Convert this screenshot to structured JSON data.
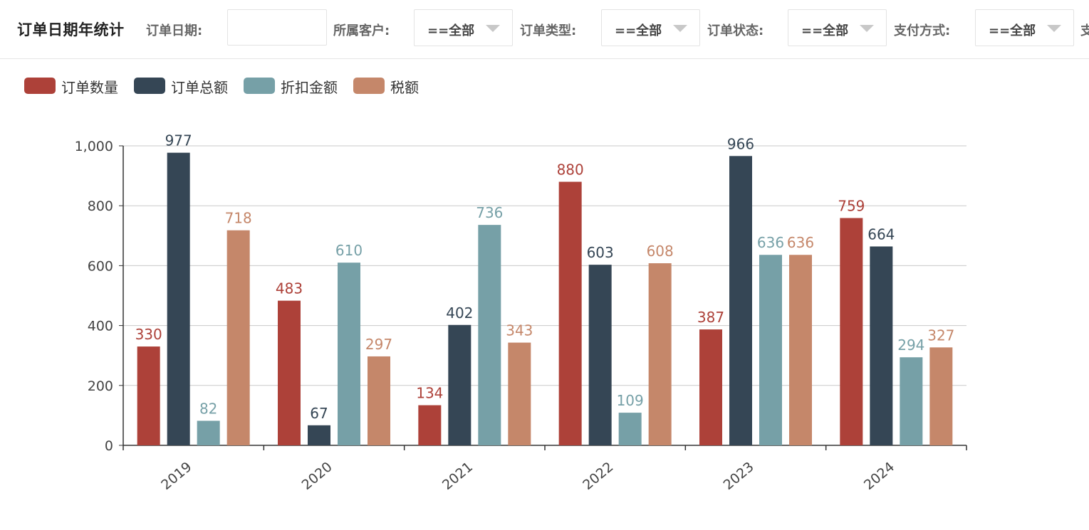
{
  "header": {
    "title": "订单日期年统计",
    "filters": {
      "order_date": {
        "label": "订单日期:",
        "value": ""
      },
      "customer": {
        "label": "所属客户:",
        "value": "==全部"
      },
      "order_type": {
        "label": "订单类型:",
        "value": "==全部"
      },
      "order_status": {
        "label": "订单状态:",
        "value": "==全部"
      },
      "payment_method": {
        "label": "支付方式:",
        "value": "==全部"
      },
      "cut_off_label": "支"
    }
  },
  "chart_data": {
    "type": "bar",
    "title": "订单日期年统计",
    "categories": [
      "2019",
      "2020",
      "2021",
      "2022",
      "2023",
      "2024"
    ],
    "series": [
      {
        "name": "订单数量",
        "color": "#ad4139",
        "values": [
          330,
          483,
          134,
          880,
          387,
          759
        ]
      },
      {
        "name": "订单总额",
        "color": "#354655",
        "values": [
          977,
          67,
          402,
          603,
          966,
          664
        ]
      },
      {
        "name": "折扣金额",
        "color": "#76a0a7",
        "values": [
          82,
          610,
          736,
          109,
          636,
          294
        ]
      },
      {
        "name": "税额",
        "color": "#c5876a",
        "values": [
          718,
          297,
          343,
          608,
          636,
          327
        ]
      }
    ],
    "ylim": [
      0,
      1000
    ],
    "yticks": [
      "0",
      "200",
      "400",
      "600",
      "800",
      "1,000"
    ],
    "ytick_values": [
      0,
      200,
      400,
      600,
      800,
      1000
    ],
    "xlabel": "",
    "ylabel": "",
    "grid": true,
    "legend_position": "top-left"
  }
}
